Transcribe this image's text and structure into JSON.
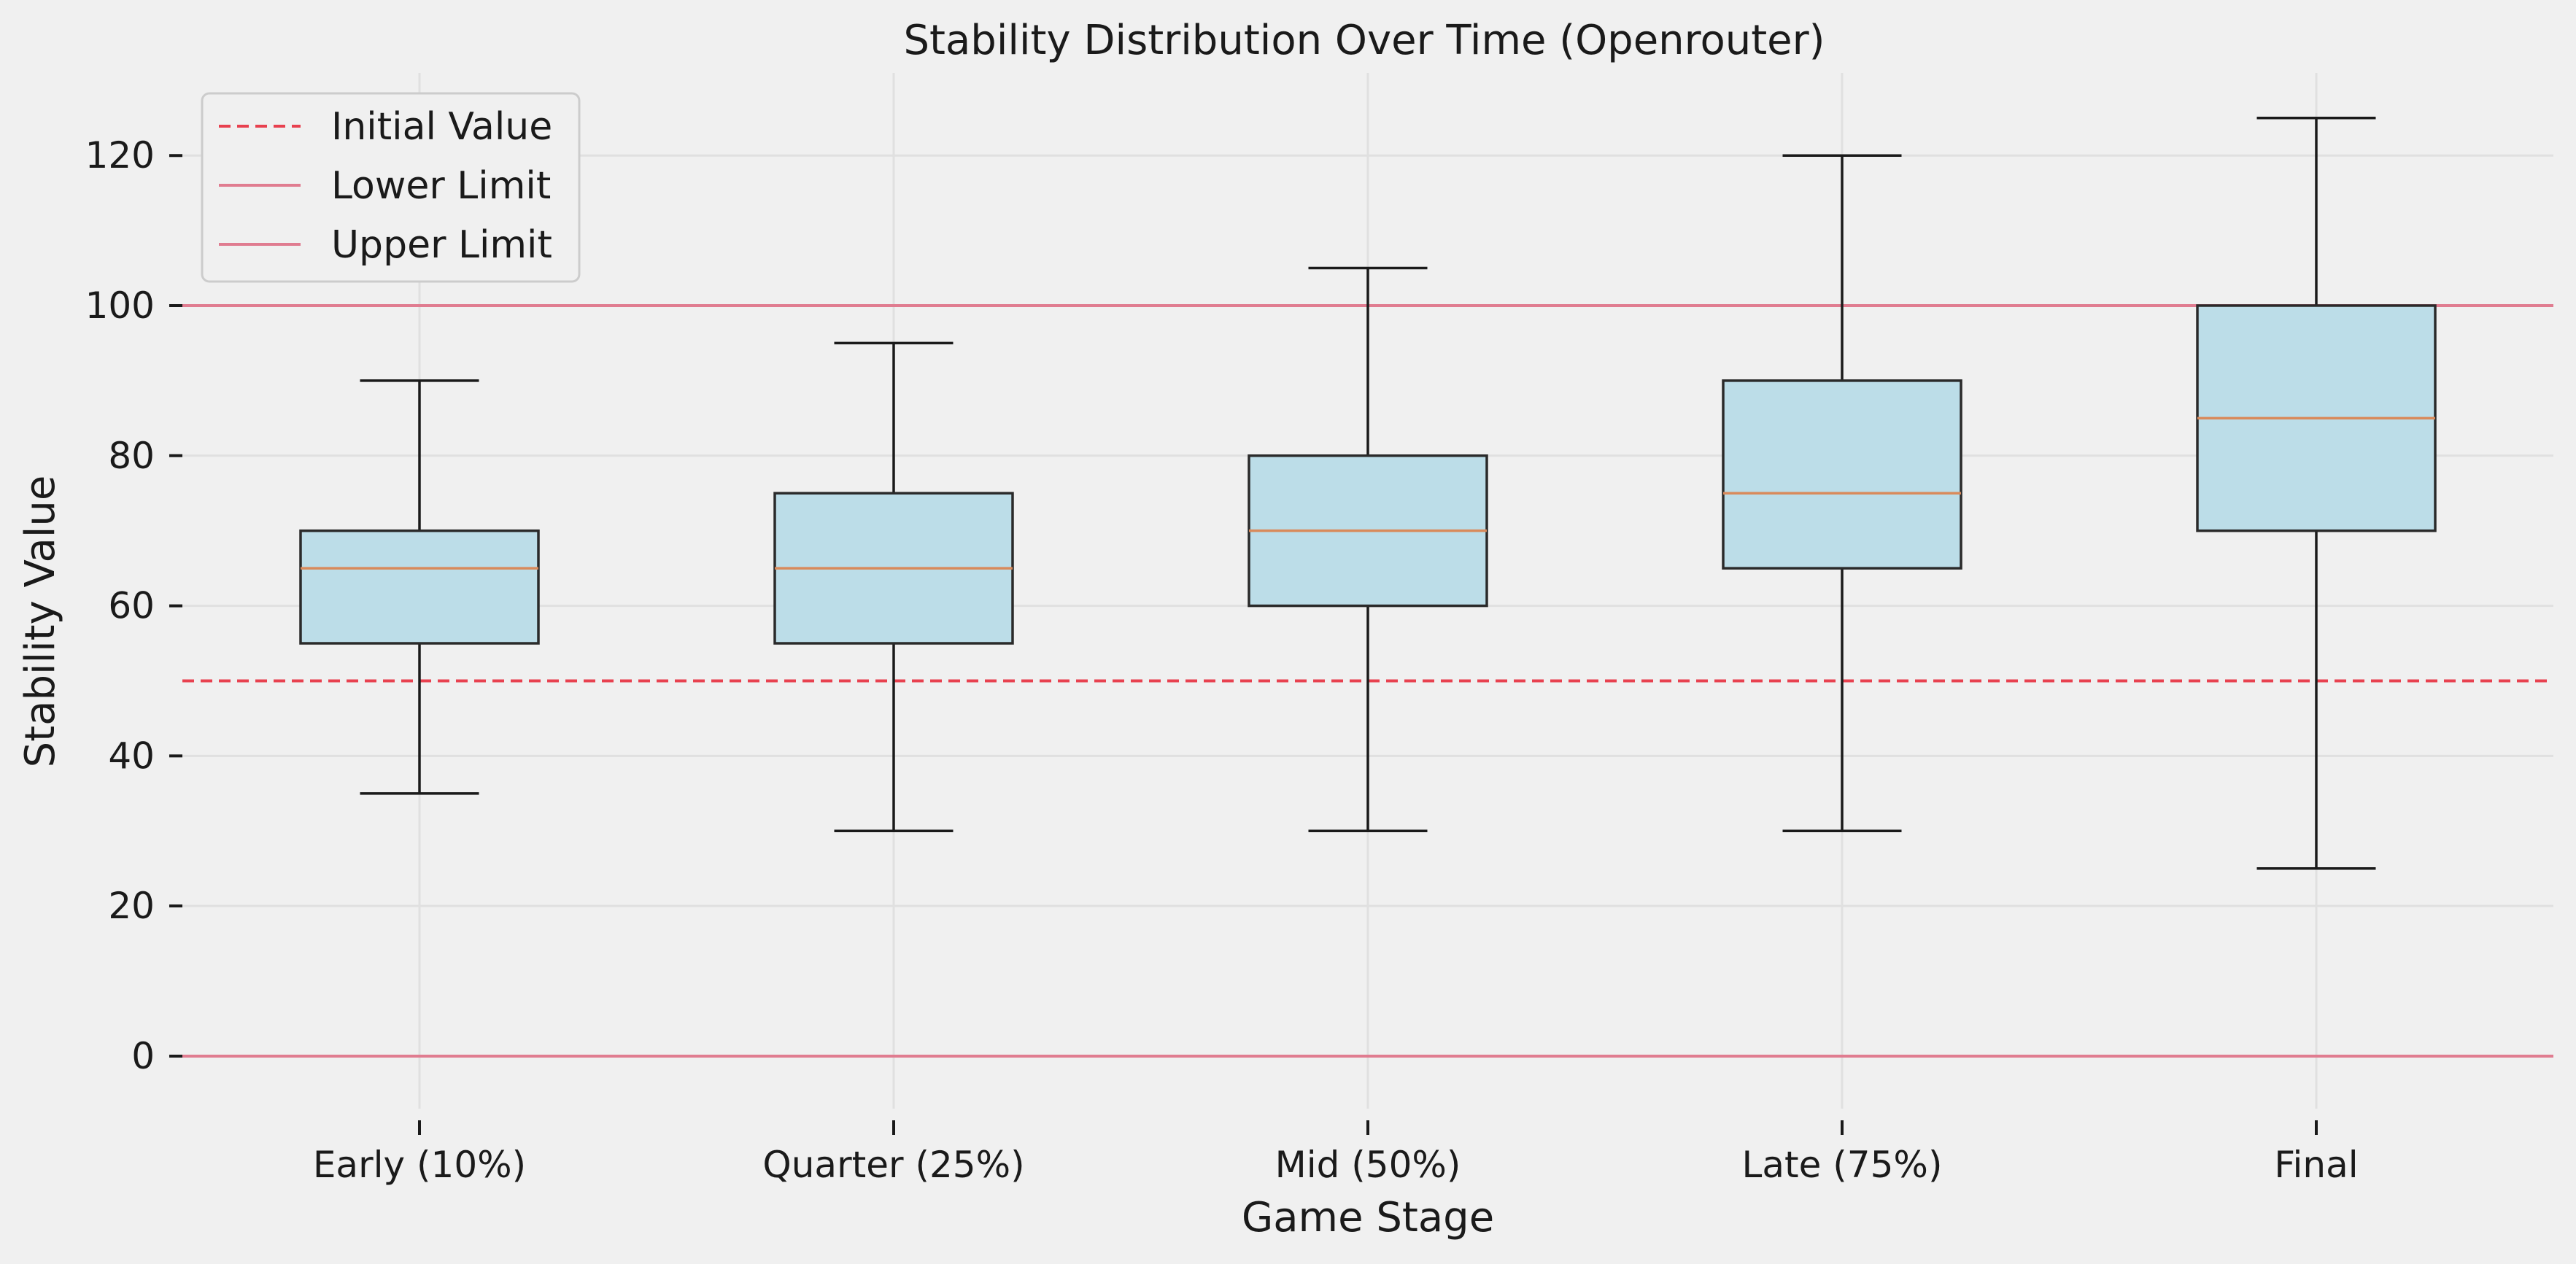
{
  "chart_data": {
    "type": "box",
    "title": "Stability Distribution Over Time (Openrouter)",
    "xlabel": "Game Stage",
    "ylabel": "Stability Value",
    "ylim": [
      -7,
      131
    ],
    "yticks": [
      0,
      20,
      40,
      60,
      80,
      100,
      120
    ],
    "grid": true,
    "legend_position": "top-left",
    "categories": [
      "Early (10%)",
      "Quarter (25%)",
      "Mid (50%)",
      "Late (75%)",
      "Final"
    ],
    "boxes": [
      {
        "whisker_low": 35,
        "q1": 55,
        "median": 65,
        "q3": 70,
        "whisker_high": 90
      },
      {
        "whisker_low": 30,
        "q1": 55,
        "median": 65,
        "q3": 75,
        "whisker_high": 95
      },
      {
        "whisker_low": 30,
        "q1": 60,
        "median": 70,
        "q3": 80,
        "whisker_high": 105
      },
      {
        "whisker_low": 30,
        "q1": 65,
        "median": 75,
        "q3": 90,
        "whisker_high": 120
      },
      {
        "whisker_low": 25,
        "q1": 70,
        "median": 85,
        "q3": 100,
        "whisker_high": 125
      }
    ],
    "reference_lines": [
      {
        "label": "Initial Value",
        "value": 50,
        "style": "dashed",
        "color": "#e8414f"
      },
      {
        "label": "Lower Limit",
        "value": 0,
        "style": "solid",
        "color": "#e07c90"
      },
      {
        "label": "Upper Limit",
        "value": 100,
        "style": "solid",
        "color": "#e07c90"
      }
    ],
    "colors": {
      "background": "#f0f0f0",
      "grid": "#e0e0e0",
      "box_fill": "#bcdde8",
      "box_edge": "#2a2a2a",
      "median": "#d98a5b",
      "whisker": "#1a1a1a",
      "legend_border": "#cccccc",
      "legend_fill": "#f0f0f0"
    }
  }
}
